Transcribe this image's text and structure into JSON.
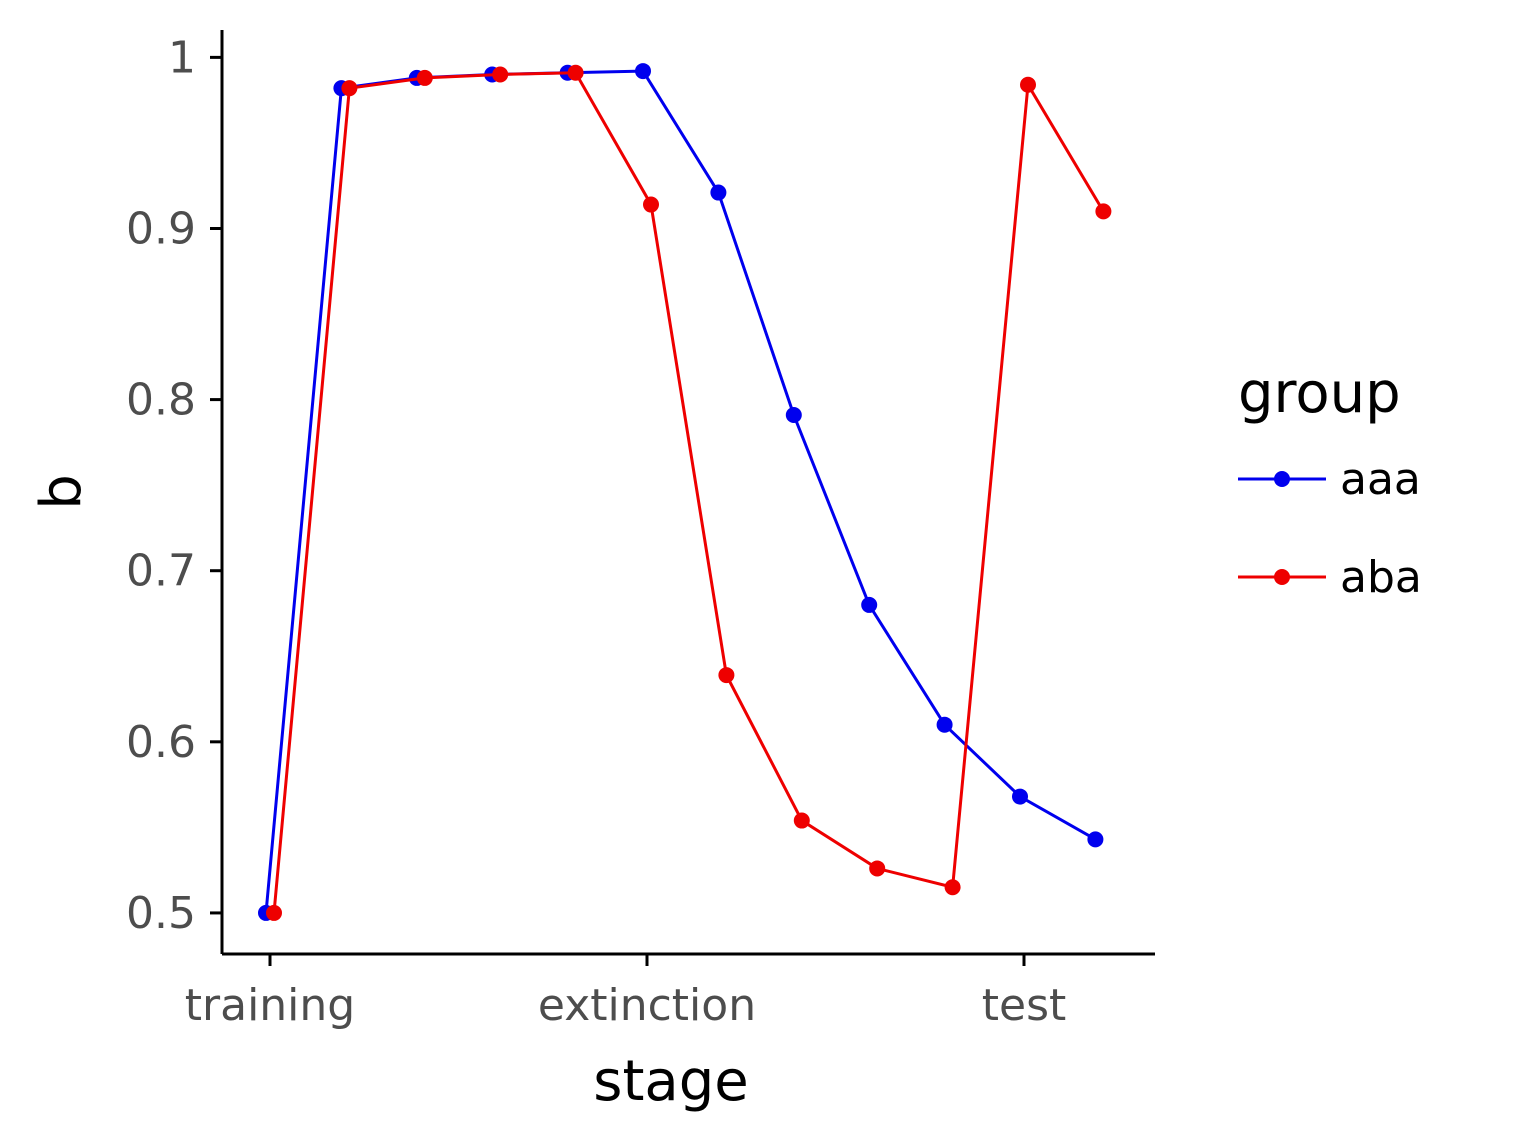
{
  "chart_data": {
    "type": "line",
    "xlabel": "stage",
    "ylabel": "b",
    "x_tick_labels": [
      "training",
      "extinction",
      "test"
    ],
    "y_ticks": [
      "0.5",
      "0.6",
      "0.7",
      "0.8",
      "0.9",
      "1"
    ],
    "ylim": [
      0.476,
      1.016
    ],
    "grid": false,
    "legend": {
      "title": "group",
      "placement": "right"
    },
    "x": [
      1,
      2,
      3,
      4,
      5,
      6,
      7,
      8,
      9,
      10,
      11,
      12
    ],
    "series": [
      {
        "name": "aaa",
        "color": "#0000ee",
        "values": [
          0.5,
          0.982,
          0.988,
          0.99,
          0.991,
          0.992,
          0.921,
          0.791,
          0.68,
          0.61,
          0.568,
          0.543
        ]
      },
      {
        "name": "aba",
        "color": "#ee0000",
        "values": [
          0.5,
          0.982,
          0.988,
          0.99,
          0.991,
          0.914,
          0.639,
          0.554,
          0.526,
          0.515,
          0.984,
          0.91
        ]
      }
    ]
  }
}
